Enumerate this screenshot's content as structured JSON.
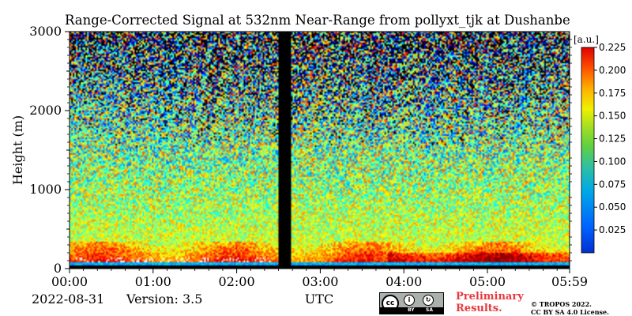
{
  "chart_data": {
    "type": "heatmap",
    "title": "Range-Corrected Signal at 532nm Near-Range from pollyxt_tjk at Dushanbe",
    "ylabel": "Height (m)",
    "xlabel": "UTC",
    "x_ticks": [
      "00:00",
      "01:00",
      "02:00",
      "03:00",
      "04:00",
      "05:00",
      "05:59"
    ],
    "x_range_hours": [
      0,
      5.983
    ],
    "y_ticks": [
      0,
      1000,
      2000,
      3000
    ],
    "ylim": [
      0,
      3000
    ],
    "colorbar": {
      "label": "[a.u.]",
      "min": 0.0,
      "max": 0.225,
      "ticks": [
        0.025,
        0.05,
        0.075,
        0.1,
        0.125,
        0.15,
        0.175,
        0.2,
        0.225
      ],
      "tick_labels": [
        "0.025",
        "0.050",
        "0.075",
        "0.100",
        "0.125",
        "0.150",
        "0.175",
        "0.200",
        "0.225"
      ],
      "colormap": "jet"
    },
    "data_gap_hours": [
      2.5,
      2.65
    ],
    "features": {
      "aerosol_layer_top_m": 350,
      "noisy_above_m": 2000
    }
  },
  "footer": {
    "date": "2022-08-31",
    "version": "Version: 3.5",
    "preliminary_line1": "Preliminary",
    "preliminary_line2": "Results.",
    "copyright_line1": "© TROPOS 2022.",
    "copyright_line2": "CC BY SA 4.0 License."
  },
  "license_badge": {
    "cc": "cc",
    "by": "BY",
    "sa": "SA",
    "icon": "cc-by-sa-icon"
  }
}
